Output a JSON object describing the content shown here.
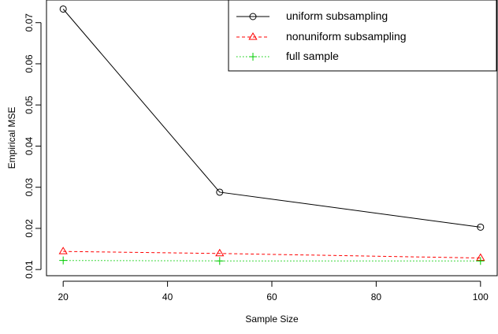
{
  "chart_data": {
    "type": "line",
    "xlabel": "Sample Size",
    "ylabel": "Empirical MSE",
    "xlim": [
      16.8,
      103.2
    ],
    "ylim": [
      0.0085,
      0.0755
    ],
    "x_ticks": [
      20,
      40,
      60,
      80,
      100
    ],
    "x_tick_labels": [
      "20",
      "40",
      "60",
      "80",
      "100"
    ],
    "y_ticks": [
      0.01,
      0.02,
      0.03,
      0.04,
      0.05,
      0.06,
      0.07
    ],
    "y_tick_labels": [
      "0.01",
      "0.02",
      "0.03",
      "0.04",
      "0.05",
      "0.06",
      "0.07"
    ],
    "grid": false,
    "legend_position": "top-right",
    "x": [
      20,
      50,
      100
    ],
    "series": [
      {
        "name": "uniform subsampling",
        "values": [
          0.0733,
          0.0288,
          0.0203
        ],
        "color": "#000000",
        "marker": "circle",
        "dash": "solid"
      },
      {
        "name": "nonuniform subsampling",
        "values": [
          0.0144,
          0.0139,
          0.0128
        ],
        "color": "#ff0000",
        "marker": "triangle",
        "dash": "dashed"
      },
      {
        "name": "full sample",
        "values": [
          0.0122,
          0.0121,
          0.0121
        ],
        "color": "#00cc00",
        "marker": "plus",
        "dash": "dotted"
      }
    ]
  }
}
